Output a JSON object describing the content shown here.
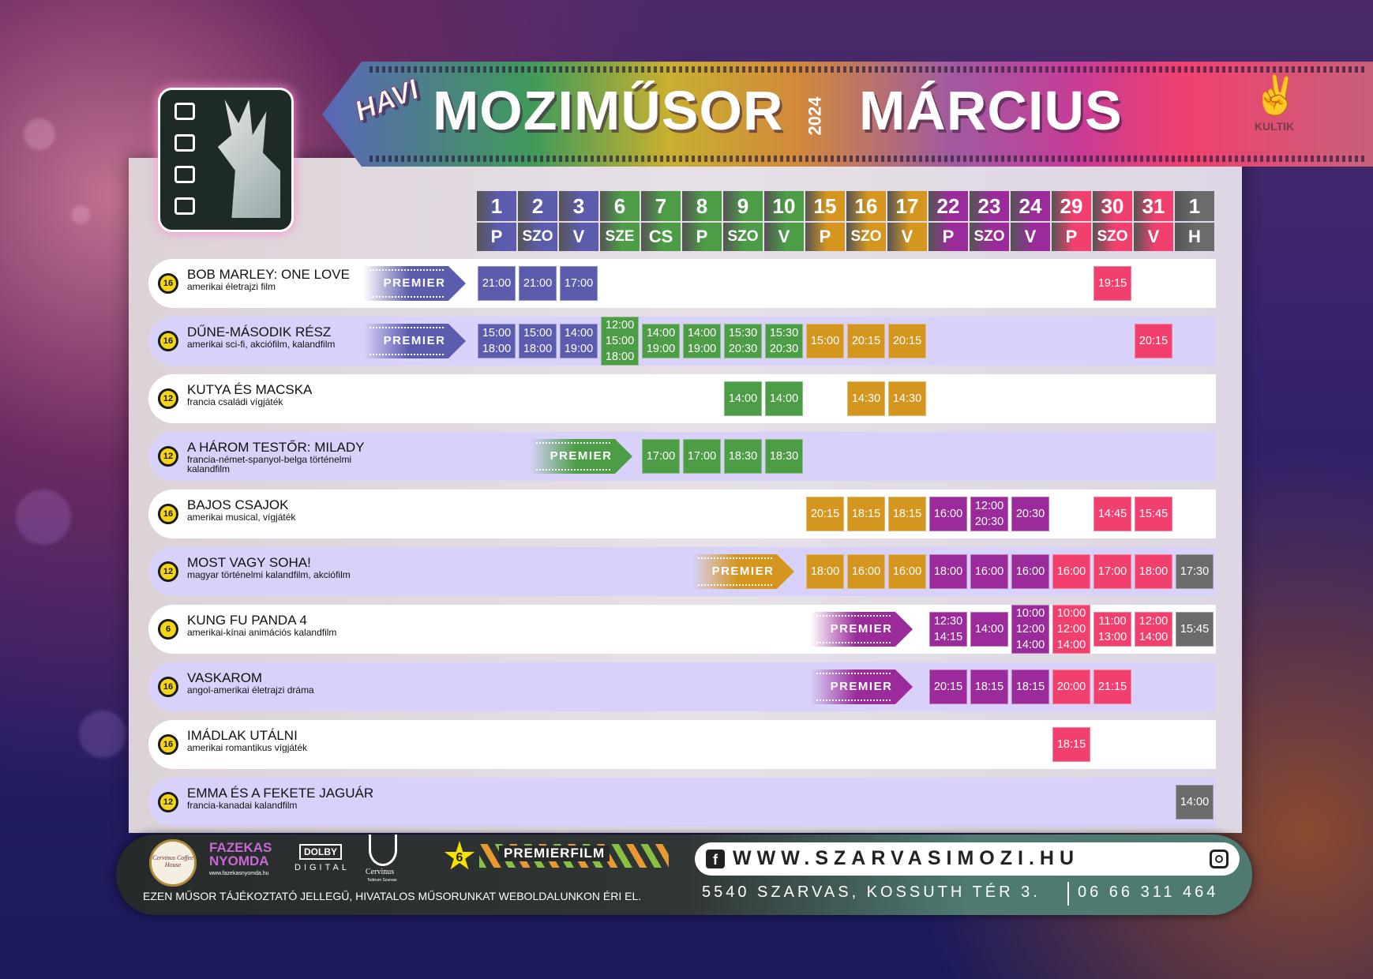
{
  "title": {
    "prefix": "HAVI",
    "main": "MOZIMŰSOR",
    "year": "2024",
    "month": "MÁRCIUS",
    "partner_logo": "KULTIK"
  },
  "colors": {
    "blue": "#5b5cae",
    "green": "#4c9d46",
    "orange": "#d4961f",
    "purple": "#9b2b9b",
    "pink": "#f1406d",
    "gray": "#6b6b6b",
    "row_alt": "#d8d2fa"
  },
  "columns": [
    {
      "date": "1",
      "day": "P",
      "color": "blue"
    },
    {
      "date": "2",
      "day": "SZO",
      "color": "blue"
    },
    {
      "date": "3",
      "day": "V",
      "color": "blue"
    },
    {
      "date": "6",
      "day": "SZE",
      "color": "green"
    },
    {
      "date": "7",
      "day": "CS",
      "color": "green"
    },
    {
      "date": "8",
      "day": "P",
      "color": "green"
    },
    {
      "date": "9",
      "day": "SZO",
      "color": "green"
    },
    {
      "date": "10",
      "day": "V",
      "color": "green"
    },
    {
      "date": "15",
      "day": "P",
      "color": "orange"
    },
    {
      "date": "16",
      "day": "SZO",
      "color": "orange"
    },
    {
      "date": "17",
      "day": "V",
      "color": "orange"
    },
    {
      "date": "22",
      "day": "P",
      "color": "purple"
    },
    {
      "date": "23",
      "day": "SZO",
      "color": "purple"
    },
    {
      "date": "24",
      "day": "V",
      "color": "purple"
    },
    {
      "date": "29",
      "day": "P",
      "color": "pink"
    },
    {
      "date": "30",
      "day": "SZO",
      "color": "pink"
    },
    {
      "date": "31",
      "day": "V",
      "color": "pink"
    },
    {
      "date": "1",
      "day": "H",
      "color": "gray"
    }
  ],
  "premier_label": "PREMIER",
  "movies": [
    {
      "rating": "16",
      "title": "BOB MARLEY: ONE LOVE",
      "genre": "amerikai életrajzi film",
      "premier": "blue",
      "shows": [
        [
          0,
          [
            "21:00"
          ]
        ],
        [
          1,
          [
            "21:00"
          ]
        ],
        [
          2,
          [
            "17:00"
          ]
        ],
        [
          15,
          [
            "19:15"
          ]
        ]
      ]
    },
    {
      "rating": "16",
      "title": "DŰNE-MÁSODIK RÉSZ",
      "genre": "amerikai sci-fi, akciófilm, kalandfilm",
      "premier": "blue",
      "shows": [
        [
          0,
          [
            "15:00",
            "18:00"
          ]
        ],
        [
          1,
          [
            "15:00",
            "18:00"
          ]
        ],
        [
          2,
          [
            "14:00",
            "19:00"
          ]
        ],
        [
          3,
          [
            "12:00",
            "15:00",
            "18:00"
          ]
        ],
        [
          4,
          [
            "14:00",
            "19:00"
          ]
        ],
        [
          5,
          [
            "14:00",
            "19:00"
          ]
        ],
        [
          6,
          [
            "15:30",
            "20:30"
          ]
        ],
        [
          7,
          [
            "15:30",
            "20:30"
          ]
        ],
        [
          8,
          [
            "15:00"
          ]
        ],
        [
          9,
          [
            "20:15"
          ]
        ],
        [
          10,
          [
            "20:15"
          ]
        ],
        [
          16,
          [
            "20:15"
          ]
        ]
      ]
    },
    {
      "rating": "12",
      "title": "KUTYA ÉS MACSKA",
      "genre": "francia családi vígjáték",
      "premier": null,
      "shows": [
        [
          6,
          [
            "14:00"
          ]
        ],
        [
          7,
          [
            "14:00"
          ]
        ],
        [
          9,
          [
            "14:30"
          ]
        ],
        [
          10,
          [
            "14:30"
          ]
        ]
      ]
    },
    {
      "rating": "12",
      "title": "A HÁROM TESTŐR: MILADY",
      "genre": "francia-német-spanyol-belga történelmi kalandfilm",
      "premier": "green",
      "shows": [
        [
          4,
          [
            "17:00"
          ]
        ],
        [
          5,
          [
            "17:00"
          ]
        ],
        [
          6,
          [
            "18:30"
          ]
        ],
        [
          7,
          [
            "18:30"
          ]
        ]
      ]
    },
    {
      "rating": "16",
      "title": "BAJOS CSAJOK",
      "genre": "amerikai musical, vígjáték",
      "premier": null,
      "shows": [
        [
          8,
          [
            "20:15"
          ]
        ],
        [
          9,
          [
            "18:15"
          ]
        ],
        [
          10,
          [
            "18:15"
          ]
        ],
        [
          11,
          [
            "16:00"
          ]
        ],
        [
          12,
          [
            "12:00",
            "20:30"
          ]
        ],
        [
          13,
          [
            "20:30"
          ]
        ],
        [
          15,
          [
            "14:45"
          ]
        ],
        [
          16,
          [
            "15:45"
          ]
        ]
      ]
    },
    {
      "rating": "12",
      "title": "MOST VAGY SOHA!",
      "genre": "magyar történelmi kalandfilm, akciófilm",
      "premier": "orange",
      "shows": [
        [
          8,
          [
            "18:00"
          ]
        ],
        [
          9,
          [
            "16:00"
          ]
        ],
        [
          10,
          [
            "16:00"
          ]
        ],
        [
          11,
          [
            "18:00"
          ]
        ],
        [
          12,
          [
            "16:00"
          ]
        ],
        [
          13,
          [
            "16:00"
          ]
        ],
        [
          14,
          [
            "16:00"
          ]
        ],
        [
          15,
          [
            "17:00"
          ]
        ],
        [
          16,
          [
            "18:00"
          ]
        ],
        [
          17,
          [
            "17:30"
          ]
        ]
      ]
    },
    {
      "rating": "6",
      "title": "KUNG FU PANDA 4",
      "genre": "amerikai-kínai animációs kalandfilm",
      "premier": "purple",
      "shows": [
        [
          11,
          [
            "12:30",
            "14:15"
          ]
        ],
        [
          12,
          [
            "14:00"
          ]
        ],
        [
          13,
          [
            "10:00",
            "12:00",
            "14:00"
          ]
        ],
        [
          14,
          [
            "10:00",
            "12:00",
            "14:00"
          ]
        ],
        [
          15,
          [
            "11:00",
            "13:00"
          ]
        ],
        [
          16,
          [
            "12:00",
            "14:00"
          ]
        ],
        [
          17,
          [
            "15:45"
          ]
        ]
      ]
    },
    {
      "rating": "16",
      "title": "VASKAROM",
      "genre": "angol-amerikai életrajzi dráma",
      "premier": "purple",
      "shows": [
        [
          11,
          [
            "20:15"
          ]
        ],
        [
          12,
          [
            "18:15"
          ]
        ],
        [
          13,
          [
            "18:15"
          ]
        ],
        [
          14,
          [
            "20:00"
          ]
        ],
        [
          15,
          [
            "21:15"
          ]
        ]
      ]
    },
    {
      "rating": "16",
      "title": "IMÁDLAK UTÁLNI",
      "genre": "amerikai romantikus vígjáték",
      "premier": null,
      "shows": [
        [
          14,
          [
            "18:15"
          ]
        ]
      ]
    },
    {
      "rating": "12",
      "title": "EMMA ÉS A FEKETE JAGUÁR",
      "genre": "francia-kanadai kalandfilm",
      "premier": null,
      "shows": [
        [
          17,
          [
            "14:00"
          ]
        ]
      ]
    }
  ],
  "footer": {
    "sponsors": {
      "coffee": "Cervinus Coffee House",
      "fazekas": "FAZEKAS NYOMDA",
      "fazekas_url": "www.fazekasnyomda.hu",
      "dolby": "DOLBY",
      "dolby_sub": "DIGITAL",
      "cervinus": "Cervinus",
      "cervinus_sub": "Teátrum Szarvas",
      "premier_num": "6",
      "premierfilm": "PREMIERFILM"
    },
    "disclaimer": "EZEN MŰSOR TÁJÉKOZTATÓ JELLEGŰ, HIVATALOS MŰSORUNKAT WEBOLDALUNKON ÉRI EL.",
    "website": "WWW.SZARVASIMOZI.HU",
    "address": "5540 SZARVAS, KOSSUTH TÉR 3.",
    "phone": "06 66 311 464"
  }
}
